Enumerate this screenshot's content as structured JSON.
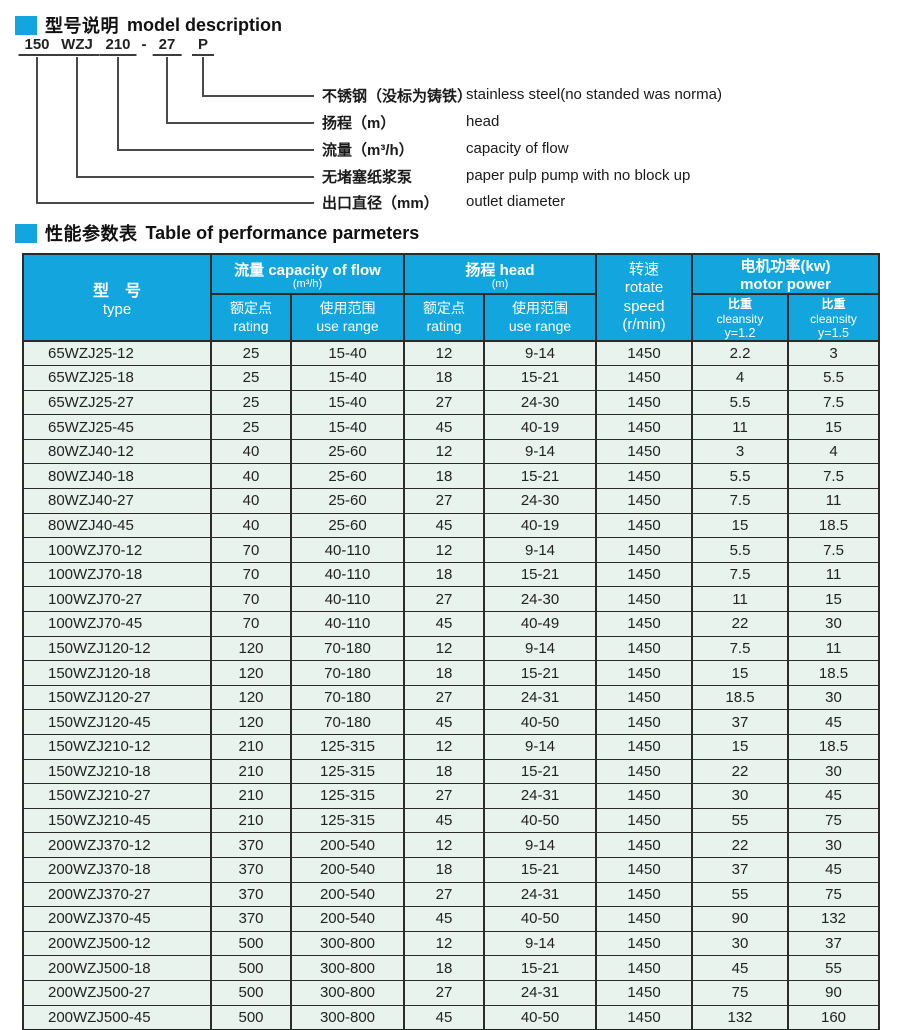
{
  "section1": {
    "title_zh": "型号说明",
    "title_en": "model description",
    "model_tokens": [
      "150",
      "WZJ",
      "210",
      "-",
      "27",
      "P"
    ],
    "annotations": [
      {
        "zh": "不锈钢（没标为铸铁）",
        "en": "stainless steel(no standed was norma)"
      },
      {
        "zh": "扬程（m）",
        "en": "head"
      },
      {
        "zh": "流量（m³/h）",
        "en": "capacity of flow"
      },
      {
        "zh": "无堵塞纸浆泵",
        "en": "paper pulp pump with no block up"
      },
      {
        "zh": "出口直径（mm）",
        "en": "outlet diameter"
      }
    ]
  },
  "section2": {
    "title_zh": "性能参数表",
    "title_en": "Table of performance parmeters"
  },
  "table": {
    "accent_color": "#12a5de",
    "row_bg_color": "#e8f3ee",
    "header": {
      "type_zh": "型　号",
      "type_en": "type",
      "flow_l1": "流量 capacity of flow",
      "flow_l2": "(m³/h)",
      "head_l1": "扬程 head",
      "head_l2": "(m)",
      "rating": "额定点\nrating",
      "use_range": "使用范围\nuse range",
      "rotate": "转速\nrotate\nspeed\n(r/min)",
      "power_l1": "电机功率(kw)",
      "power_l2": "motor  power",
      "density_zh": "比重",
      "density_en": "cleansity",
      "y12": "y=1.2",
      "y15": "y=1.5"
    },
    "rows": [
      [
        "65WZJ25-12",
        "25",
        "15-40",
        "12",
        "9-14",
        "1450",
        "2.2",
        "3"
      ],
      [
        "65WZJ25-18",
        "25",
        "15-40",
        "18",
        "15-21",
        "1450",
        "4",
        "5.5"
      ],
      [
        "65WZJ25-27",
        "25",
        "15-40",
        "27",
        "24-30",
        "1450",
        "5.5",
        "7.5"
      ],
      [
        "65WZJ25-45",
        "25",
        "15-40",
        "45",
        "40-19",
        "1450",
        "11",
        "15"
      ],
      [
        "80WZJ40-12",
        "40",
        "25-60",
        "12",
        "9-14",
        "1450",
        "3",
        "4"
      ],
      [
        "80WZJ40-18",
        "40",
        "25-60",
        "18",
        "15-21",
        "1450",
        "5.5",
        "7.5"
      ],
      [
        "80WZJ40-27",
        "40",
        "25-60",
        "27",
        "24-30",
        "1450",
        "7.5",
        "11"
      ],
      [
        "80WZJ40-45",
        "40",
        "25-60",
        "45",
        "40-19",
        "1450",
        "15",
        "18.5"
      ],
      [
        "100WZJ70-12",
        "70",
        "40-110",
        "12",
        "9-14",
        "1450",
        "5.5",
        "7.5"
      ],
      [
        "100WZJ70-18",
        "70",
        "40-110",
        "18",
        "15-21",
        "1450",
        "7.5",
        "11"
      ],
      [
        "100WZJ70-27",
        "70",
        "40-110",
        "27",
        "24-30",
        "1450",
        "11",
        "15"
      ],
      [
        "100WZJ70-45",
        "70",
        "40-110",
        "45",
        "40-49",
        "1450",
        "22",
        "30"
      ],
      [
        "150WZJ120-12",
        "120",
        "70-180",
        "12",
        "9-14",
        "1450",
        "7.5",
        "11"
      ],
      [
        "150WZJ120-18",
        "120",
        "70-180",
        "18",
        "15-21",
        "1450",
        "15",
        "18.5"
      ],
      [
        "150WZJ120-27",
        "120",
        "70-180",
        "27",
        "24-31",
        "1450",
        "18.5",
        "30"
      ],
      [
        "150WZJ120-45",
        "120",
        "70-180",
        "45",
        "40-50",
        "1450",
        "37",
        "45"
      ],
      [
        "150WZJ210-12",
        "210",
        "125-315",
        "12",
        "9-14",
        "1450",
        "15",
        "18.5"
      ],
      [
        "150WZJ210-18",
        "210",
        "125-315",
        "18",
        "15-21",
        "1450",
        "22",
        "30"
      ],
      [
        "150WZJ210-27",
        "210",
        "125-315",
        "27",
        "24-31",
        "1450",
        "30",
        "45"
      ],
      [
        "150WZJ210-45",
        "210",
        "125-315",
        "45",
        "40-50",
        "1450",
        "55",
        "75"
      ],
      [
        "200WZJ370-12",
        "370",
        "200-540",
        "12",
        "9-14",
        "1450",
        "22",
        "30"
      ],
      [
        "200WZJ370-18",
        "370",
        "200-540",
        "18",
        "15-21",
        "1450",
        "37",
        "45"
      ],
      [
        "200WZJ370-27",
        "370",
        "200-540",
        "27",
        "24-31",
        "1450",
        "55",
        "75"
      ],
      [
        "200WZJ370-45",
        "370",
        "200-540",
        "45",
        "40-50",
        "1450",
        "90",
        "132"
      ],
      [
        "200WZJ500-12",
        "500",
        "300-800",
        "12",
        "9-14",
        "1450",
        "30",
        "37"
      ],
      [
        "200WZJ500-18",
        "500",
        "300-800",
        "18",
        "15-21",
        "1450",
        "45",
        "55"
      ],
      [
        "200WZJ500-27",
        "500",
        "300-800",
        "27",
        "24-31",
        "1450",
        "75",
        "90"
      ],
      [
        "200WZJ500-45",
        "500",
        "300-800",
        "45",
        "40-50",
        "1450",
        "132",
        "160"
      ]
    ]
  }
}
